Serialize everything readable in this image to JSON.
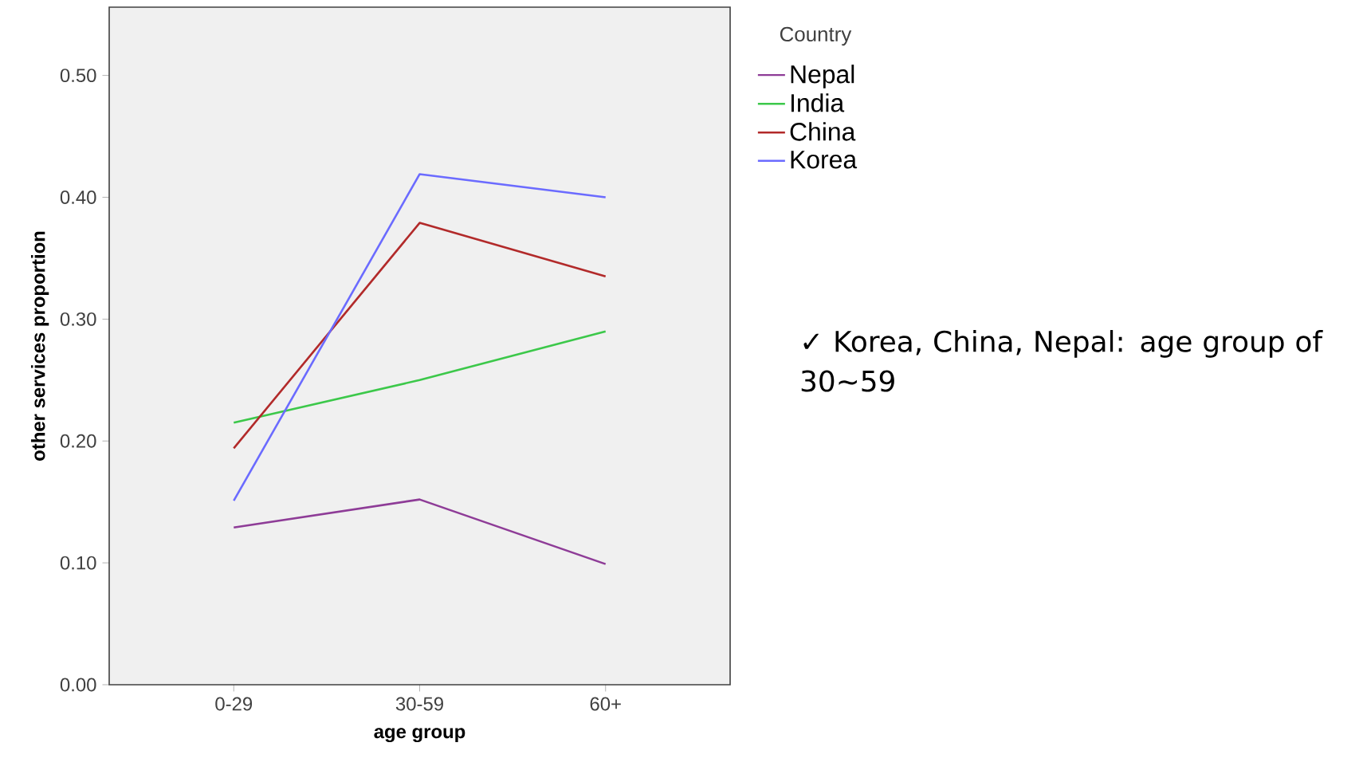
{
  "chart_data": {
    "type": "line",
    "xlabel": "age group",
    "ylabel": "other services proportion",
    "legend_title": "Country",
    "categories": [
      "0-29",
      "30-59",
      "60+"
    ],
    "series": [
      {
        "name": "Nepal",
        "color": "#8e3c97",
        "values": [
          0.129,
          0.152,
          0.099
        ]
      },
      {
        "name": "India",
        "color": "#3cc84a",
        "values": [
          0.215,
          0.25,
          0.29
        ]
      },
      {
        "name": "China",
        "color": "#b22a2a",
        "values": [
          0.194,
          0.379,
          0.335
        ]
      },
      {
        "name": "Korea",
        "color": "#6b6bff",
        "values": [
          0.151,
          0.419,
          0.4
        ]
      }
    ],
    "ylim": [
      0,
      0.556
    ],
    "yticks": [
      {
        "value": 0,
        "label": "0.00"
      },
      {
        "value": 0.1,
        "label": "0.10"
      },
      {
        "value": 0.2,
        "label": "0.20"
      },
      {
        "value": 0.3,
        "label": "0.30"
      },
      {
        "value": 0.4,
        "label": "0.40"
      },
      {
        "value": 0.5,
        "label": "0.50"
      }
    ],
    "grid": false,
    "legend": "top right",
    "marker": "none",
    "line_style": "solid",
    "annotations": [
      "✓ Korea, China, Nepal: age group of 30~59"
    ]
  }
}
